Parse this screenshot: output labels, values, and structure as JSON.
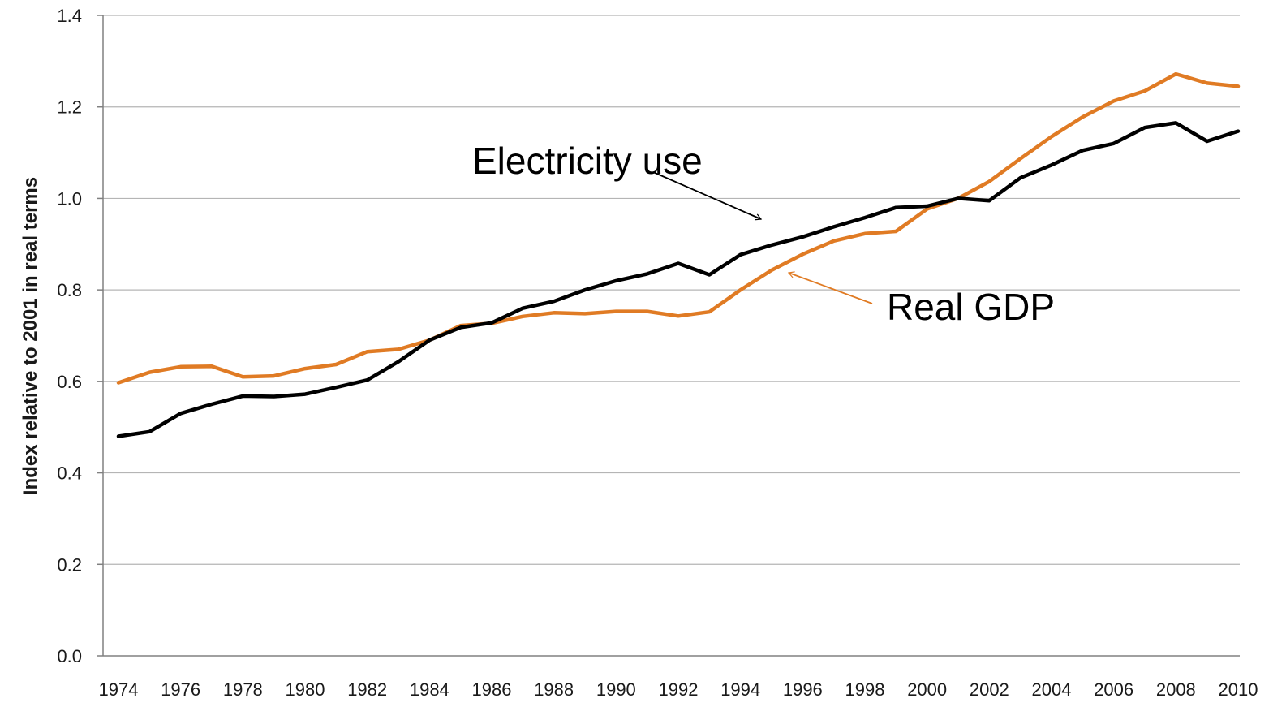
{
  "chart_data": {
    "type": "line",
    "title": "",
    "xlabel": "",
    "ylabel": "Index relative to 2001 in real terms",
    "x": [
      1974,
      1975,
      1976,
      1977,
      1978,
      1979,
      1980,
      1981,
      1982,
      1983,
      1984,
      1985,
      1986,
      1987,
      1988,
      1989,
      1990,
      1991,
      1992,
      1993,
      1994,
      1995,
      1996,
      1997,
      1998,
      1999,
      2000,
      2001,
      2002,
      2003,
      2004,
      2005,
      2006,
      2007,
      2008,
      2009,
      2010
    ],
    "x_tick_labels": [
      "1974",
      "1976",
      "1978",
      "1980",
      "1982",
      "1984",
      "1986",
      "1988",
      "1990",
      "1992",
      "1994",
      "1996",
      "1998",
      "2000",
      "2002",
      "2004",
      "2006",
      "2008",
      "2010"
    ],
    "ylim": [
      0,
      1.4
    ],
    "y_ticks": [
      0,
      0.2,
      0.4,
      0.6,
      0.8,
      1.0,
      1.2,
      1.4
    ],
    "y_tick_labels": [
      "0.0",
      "0.2",
      "0.4",
      "0.6",
      "0.8",
      "1.0",
      "1.2",
      "1.4"
    ],
    "grid": "horizontal",
    "legend": "none",
    "series": [
      {
        "name": "Electricity use",
        "color": "#000000",
        "values": [
          0.48,
          0.49,
          0.53,
          0.55,
          0.568,
          0.567,
          0.572,
          0.587,
          0.603,
          0.643,
          0.69,
          0.718,
          0.728,
          0.76,
          0.775,
          0.8,
          0.82,
          0.835,
          0.858,
          0.833,
          0.877,
          0.898,
          0.916,
          0.938,
          0.958,
          0.98,
          0.983,
          1.0,
          0.995,
          1.045,
          1.073,
          1.105,
          1.12,
          1.155,
          1.165,
          1.125,
          1.147
        ]
      },
      {
        "name": "Real GDP",
        "color": "#E07B24",
        "values": [
          0.597,
          0.62,
          0.632,
          0.633,
          0.61,
          0.612,
          0.628,
          0.637,
          0.665,
          0.67,
          0.69,
          0.722,
          0.727,
          0.742,
          0.75,
          0.748,
          0.753,
          0.753,
          0.743,
          0.752,
          0.8,
          0.843,
          0.878,
          0.907,
          0.923,
          0.928,
          0.977,
          1.0,
          1.037,
          1.087,
          1.135,
          1.178,
          1.213,
          1.235,
          1.272,
          1.252,
          1.245
        ]
      }
    ],
    "annotations": [
      {
        "text": "Electricity use",
        "series": "Electricity use",
        "color": "#000000"
      },
      {
        "text": "Real GDP",
        "series": "Real GDP",
        "color": "#E07B24"
      }
    ]
  }
}
